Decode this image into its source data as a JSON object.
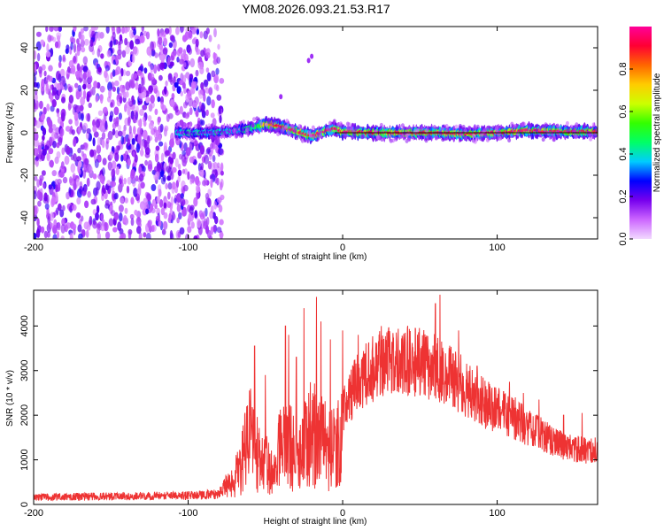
{
  "title": "YM08.2026.093.21.53.R17",
  "chart_data": [
    {
      "type": "heatmap",
      "xlabel": "Height of straight line (km)",
      "ylabel": "Frequency (Hz)",
      "xlim": [
        -200,
        165
      ],
      "ylim": [
        -50,
        50
      ],
      "xticks": [
        -200,
        -100,
        0,
        100
      ],
      "yticks": [
        -40,
        -20,
        0,
        20,
        40
      ],
      "grid": false,
      "colorbar": {
        "label": "Normalized spectral amplitude",
        "range": [
          0,
          1
        ],
        "ticks": [
          "0.0",
          "0.2",
          "0.4",
          "0.6",
          "0.8"
        ],
        "colors": [
          "#f2d9ff",
          "#cc66ff",
          "#7700ee",
          "#0000ff",
          "#00ccff",
          "#00ff66",
          "#33ff00",
          "#ccff00",
          "#ffcc00",
          "#ff6600",
          "#ff0033",
          "#ff0099"
        ]
      },
      "features": [
        {
          "name": "noise",
          "x_range": [
            -200,
            -78
          ],
          "y_range": [
            -50,
            50
          ],
          "amplitude": 0.12
        },
        {
          "name": "ridge",
          "points": [
            [
              -105,
              0
            ],
            [
              -90,
              0
            ],
            [
              -75,
              0.5
            ],
            [
              -60,
              2
            ],
            [
              -50,
              4
            ],
            [
              -40,
              3
            ],
            [
              -30,
              0.5
            ],
            [
              -20,
              -1.5
            ],
            [
              -10,
              1
            ],
            [
              -5,
              2
            ],
            [
              0,
              0.5
            ],
            [
              20,
              0
            ],
            [
              40,
              0
            ],
            [
              60,
              0
            ],
            [
              80,
              -0.5
            ],
            [
              100,
              0
            ],
            [
              120,
              1
            ],
            [
              140,
              0.5
            ],
            [
              165,
              0.5
            ]
          ],
          "amplitude_max": 0.95
        }
      ]
    },
    {
      "type": "line",
      "xlabel": "Height of straight line (km)",
      "ylabel": "SNR (10 * v/v)",
      "xlim": [
        -200,
        165
      ],
      "ylim": [
        0,
        4800
      ],
      "xticks": [
        -200,
        -100,
        0,
        100
      ],
      "yticks": [
        0,
        1000,
        2000,
        3000,
        4000
      ],
      "grid": false,
      "color": "#ee3333",
      "envelope_x": [
        -200,
        -150,
        -100,
        -80,
        -70,
        -65,
        -60,
        -55,
        -50,
        -45,
        -40,
        -35,
        -30,
        -25,
        -20,
        -15,
        -10,
        -5,
        0,
        10,
        20,
        30,
        40,
        50,
        60,
        70,
        80,
        90,
        100,
        110,
        120,
        130,
        140,
        150,
        165
      ],
      "envelope_y": [
        180,
        200,
        220,
        260,
        800,
        1400,
        2300,
        1600,
        1500,
        900,
        2000,
        1900,
        1700,
        2000,
        2400,
        2200,
        1900,
        2000,
        2200,
        2900,
        3200,
        3400,
        3400,
        3300,
        3200,
        3000,
        2700,
        2400,
        2200,
        2050,
        1800,
        1600,
        1400,
        1300,
        1250
      ],
      "spikes": [
        [
          -57,
          3550
        ],
        [
          -50,
          2900
        ],
        [
          -37,
          4000
        ],
        [
          -35,
          3800
        ],
        [
          -30,
          3300
        ],
        [
          -25,
          4400
        ],
        [
          -17,
          4650
        ],
        [
          -14,
          4100
        ],
        [
          -8,
          3700
        ],
        [
          0,
          3900
        ],
        [
          10,
          3800
        ],
        [
          25,
          4000
        ],
        [
          60,
          4500
        ],
        [
          63,
          4700
        ],
        [
          75,
          3900
        ],
        [
          87,
          3100
        ],
        [
          95,
          2700
        ],
        [
          108,
          2750
        ],
        [
          117,
          2500
        ],
        [
          127,
          2350
        ],
        [
          143,
          2000
        ],
        [
          155,
          2050
        ]
      ]
    }
  ]
}
